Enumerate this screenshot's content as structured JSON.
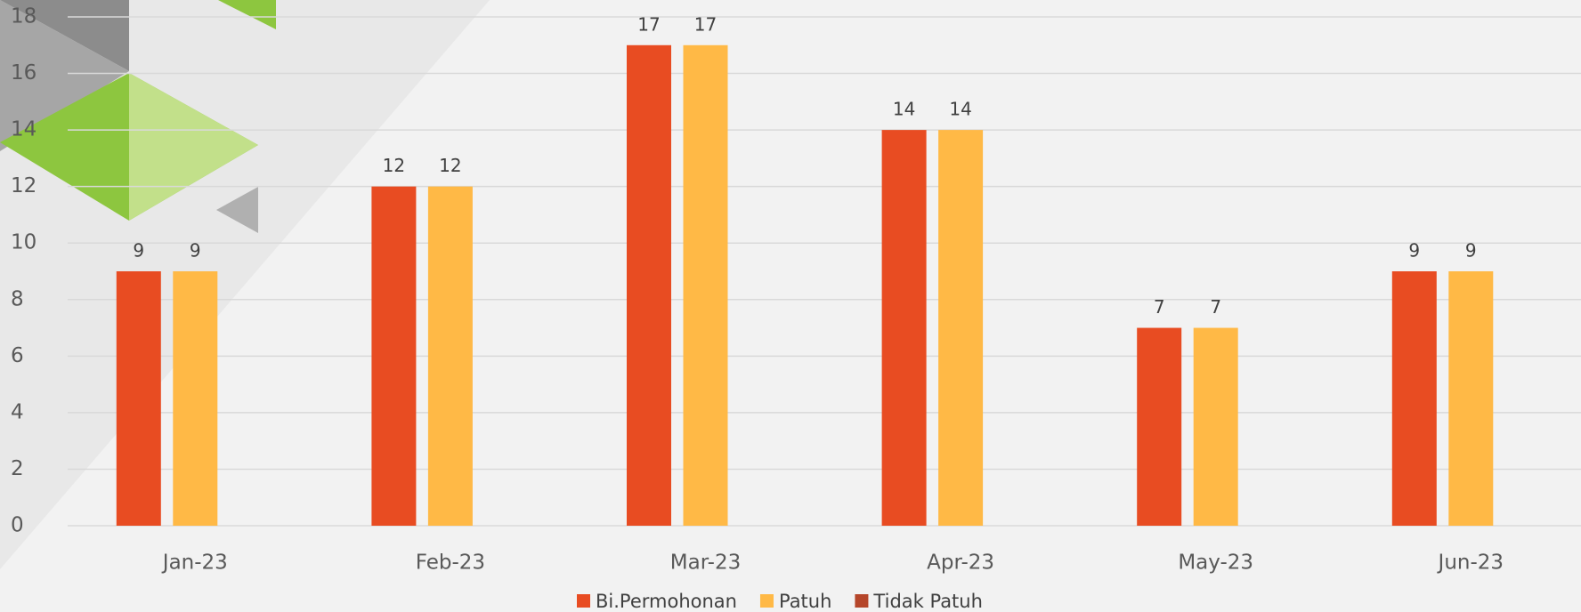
{
  "chart_data": {
    "type": "bar",
    "categories": [
      "Jan-23",
      "Feb-23",
      "Mar-23",
      "Apr-23",
      "May-23",
      "Jun-23"
    ],
    "series": [
      {
        "name": "Bi.Permohonan",
        "color": "#e84c22",
        "values": [
          9,
          12,
          17,
          14,
          7,
          9
        ]
      },
      {
        "name": "Patuh",
        "color": "#ffb946",
        "values": [
          9,
          12,
          17,
          14,
          7,
          9
        ]
      },
      {
        "name": "Tidak Patuh",
        "color": "#b5462a",
        "values": [
          0,
          0,
          0,
          0,
          0,
          0
        ]
      }
    ],
    "ylim": [
      0,
      18
    ],
    "yticks": [
      0,
      2,
      4,
      6,
      8,
      10,
      12,
      14,
      16,
      18
    ],
    "grid": true,
    "legend": "bottom"
  }
}
